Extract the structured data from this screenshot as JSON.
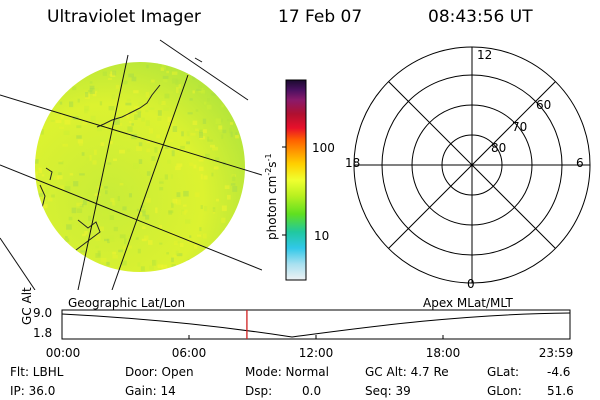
{
  "header": {
    "instrument": "Ultraviolet Imager",
    "date": "17 Feb 07",
    "time": "08:43:56 UT"
  },
  "colorbar": {
    "unit_label": "photon cm",
    "unit_exp1": "-2",
    "unit_s": "s",
    "unit_exp2": "-1",
    "tick_100": "100",
    "tick_10": "10",
    "colors": [
      "#1a0a2e",
      "#4a1060",
      "#8a1a6a",
      "#b01030",
      "#e8102a",
      "#ff6000",
      "#ff9a00",
      "#ffd000",
      "#f0ff30",
      "#b8f020",
      "#60e020",
      "#20c8a0",
      "#30c8e8",
      "#a8e0f0",
      "#e8f0f4"
    ]
  },
  "polar_plot": {
    "mlt_top": "12",
    "mlt_bottom": "0",
    "mlt_left": "18",
    "mlt_right": "6",
    "lat_60": "60",
    "lat_70": "70",
    "lat_80": "80"
  },
  "orbit_panel": {
    "left_label": "Geographic Lat/Lon",
    "right_label": "Apex MLat/MLT",
    "axis_label": "GC Alt",
    "y_top": "9.0",
    "y_bottom": "1.8",
    "x_ticks": [
      "00:00",
      "06:00",
      "12:00",
      "18:00",
      "23:59"
    ],
    "current_time_fraction": 0.364
  },
  "footer": {
    "filter": "Flt: LBHL",
    "ip": "IP: 36.0",
    "door": "Door: Open",
    "gain": "Gain: 14",
    "mode": "Mode: Normal",
    "dsp_label": "Dsp:",
    "dsp_value": "0.0",
    "gc_alt": "GC Alt: 4.7 Re",
    "seq": "Seq: 39",
    "glat_label": "GLat:",
    "glat_value": "-4.6",
    "glon_label": "GLon:",
    "glon_value": "51.6"
  },
  "colors": {
    "disk_base": "#d8ef30",
    "disk_green": "#9fe040",
    "current_marker": "#d02020"
  }
}
